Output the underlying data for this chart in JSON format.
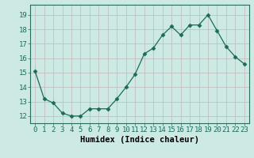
{
  "x": [
    0,
    1,
    2,
    3,
    4,
    5,
    6,
    7,
    8,
    9,
    10,
    11,
    12,
    13,
    14,
    15,
    16,
    17,
    18,
    19,
    20,
    21,
    22,
    23
  ],
  "y": [
    15.1,
    13.2,
    12.9,
    12.2,
    12.0,
    12.0,
    12.5,
    12.5,
    12.5,
    13.2,
    14.0,
    14.9,
    16.3,
    16.7,
    17.6,
    18.2,
    17.6,
    18.3,
    18.3,
    19.0,
    17.9,
    16.8,
    16.1,
    15.6
  ],
  "line_color": "#1a6b5a",
  "marker": "D",
  "marker_size": 2.5,
  "bg_color": "#cce9e4",
  "grid_color": "#c0b8b8",
  "xlabel": "Humidex (Indice chaleur)",
  "xlabel_fontsize": 7.5,
  "ylabel_ticks": [
    12,
    13,
    14,
    15,
    16,
    17,
    18,
    19
  ],
  "ylim": [
    11.5,
    19.7
  ],
  "xlim": [
    -0.5,
    23.5
  ],
  "tick_fontsize": 6.5
}
